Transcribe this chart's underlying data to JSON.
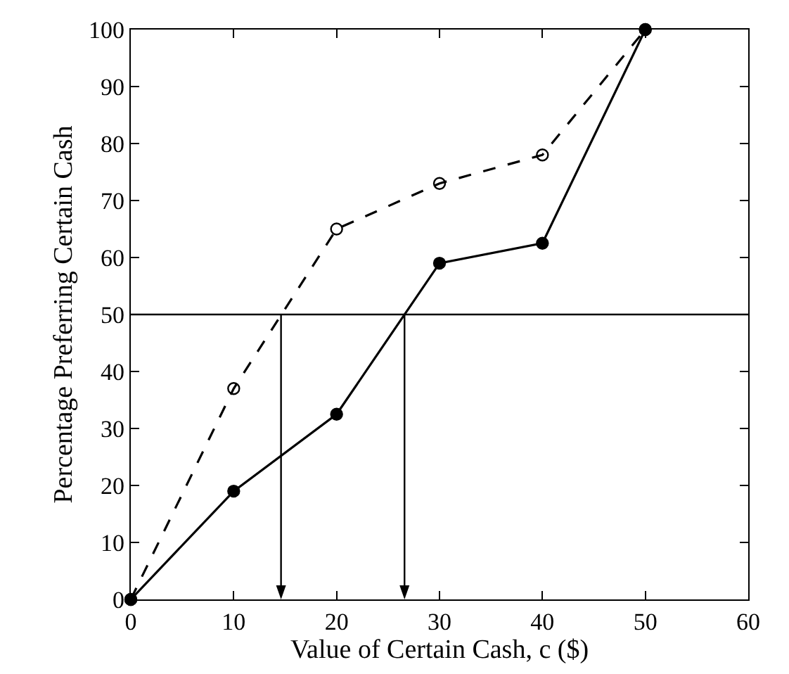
{
  "chart_data": {
    "type": "line",
    "xlabel": "Value of Certain Cash, c ($)",
    "ylabel": "Percentage Preferring Certain Cash",
    "x": [
      0,
      10,
      20,
      30,
      40,
      50
    ],
    "series": [
      {
        "color": "#000000",
        "values": [
          0,
          37,
          65,
          73,
          78,
          100
        ],
        "line_style": "dashed",
        "marker": "circle"
      },
      {
        "color": "#000000",
        "values": [
          0,
          19,
          32.5,
          59,
          62.5,
          100
        ],
        "line_style": "solid",
        "marker": "circle"
      }
    ],
    "xlim": [
      0,
      60
    ],
    "xticks": [
      0,
      10,
      20,
      30,
      40,
      50,
      60
    ],
    "ylim": [
      0,
      100
    ],
    "yticks": [
      0,
      10,
      20,
      30,
      40,
      50,
      60,
      70,
      80,
      90,
      100
    ],
    "ref_lines": [
      {
        "axis": "y",
        "value": 50,
        "color": "#000000"
      },
      {
        "axis": "x",
        "value": 14.6,
        "color": "#000000"
      },
      {
        "axis": "x",
        "value": 26.6,
        "color": "#000000"
      }
    ],
    "grid": false
  }
}
